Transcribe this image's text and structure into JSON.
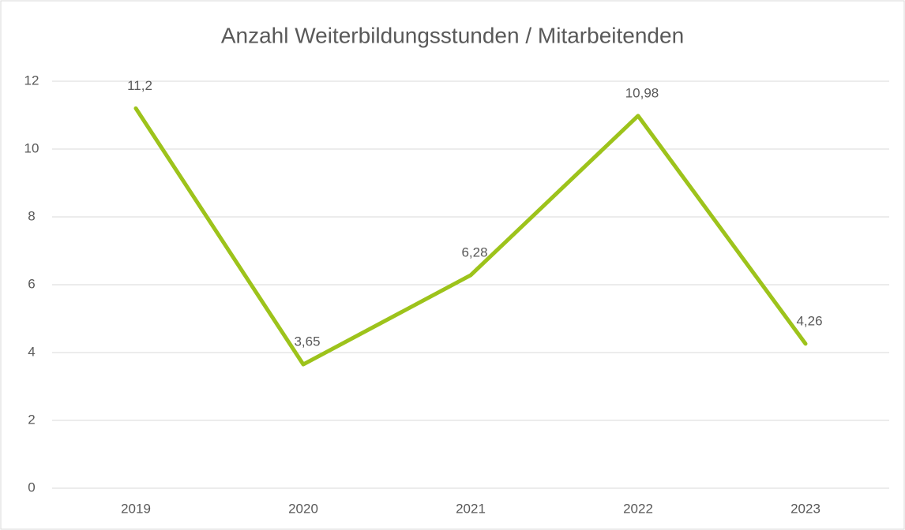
{
  "chart_data": {
    "type": "line",
    "title": "Anzahl Weiterbildungsstunden / Mitarbeitenden",
    "categories": [
      "2019",
      "2020",
      "2021",
      "2022",
      "2023"
    ],
    "series": [
      {
        "name": "Anzahl Weiterbildungsstunden / Mitarbeitenden",
        "color": "#9dc31b",
        "values": [
          11.2,
          3.65,
          6.28,
          10.98,
          4.26
        ],
        "value_labels": [
          "11,2",
          "3,65",
          "6,28",
          "10,98",
          "4,26"
        ]
      }
    ],
    "ylim": [
      0,
      12
    ],
    "yticks": [
      0,
      2,
      4,
      6,
      8,
      10,
      12
    ],
    "grid": true
  }
}
